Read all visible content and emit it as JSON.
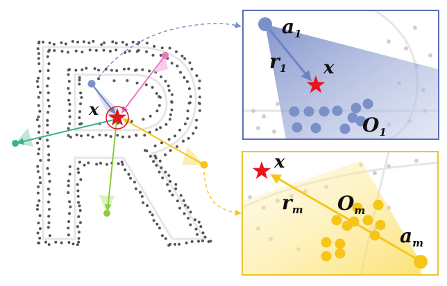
{
  "labels": {
    "main_x": "x",
    "top_inset": {
      "anchor": "a",
      "anchor_sub": "1",
      "ray": "r",
      "ray_sub": "1",
      "target": "x",
      "obstacle": "O",
      "obstacle_sub": "1"
    },
    "bottom_inset": {
      "anchor": "a",
      "anchor_sub": "m",
      "ray": "r",
      "ray_sub": "m",
      "target": "x",
      "obstacle": "O",
      "obstacle_sub": "m"
    }
  },
  "colors": {
    "blue": "#7b8fc8",
    "blue_frame": "#5b6fb5",
    "yellow": "#f5c518",
    "yellow_frame": "#ecc42a",
    "pink": "#e878c4",
    "green": "#3fb08a",
    "lime": "#8ccc3c",
    "star": "#e8141c",
    "dots": "#555555",
    "glyph": "#e6e6e6"
  },
  "icons": [
    "star-icon",
    "anchor-point-icon",
    "obstacle-point-icon"
  ]
}
